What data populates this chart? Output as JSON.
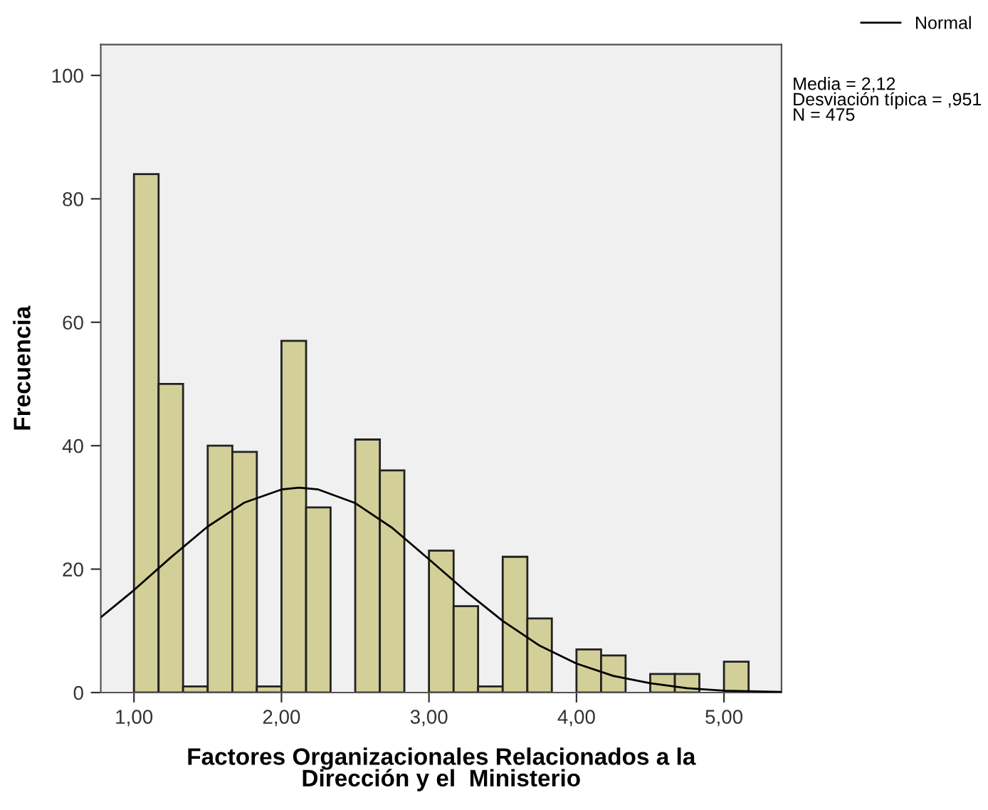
{
  "chart_data": {
    "type": "histogram",
    "xlabel": "Factores Organizacionales Relacionados a la\nDirección y el  Ministerio",
    "ylabel": "Frecuencia",
    "series": [
      {
        "color": "#d3cf98",
        "bins": [
          1,
          1.167,
          1.333,
          1.5,
          1.667,
          1.833,
          2,
          2.167,
          2.333,
          2.5,
          2.667,
          2.833,
          3,
          3.167,
          3.333,
          3.5,
          3.667,
          3.833,
          4,
          4.167,
          4.333,
          4.5,
          4.667,
          4.833,
          5,
          5.167
        ],
        "values": [
          84,
          50,
          1,
          40,
          39,
          1,
          57,
          30,
          0,
          41,
          36,
          0,
          23,
          14,
          1,
          22,
          12,
          0,
          7,
          6,
          0,
          3,
          3,
          0,
          5
        ]
      },
      {
        "type": "line",
        "name": "Normal",
        "color": "#000000",
        "x": [
          0.775,
          1.0,
          1.25,
          1.5,
          1.75,
          2.0,
          2.12,
          2.25,
          2.5,
          2.75,
          3.0,
          3.25,
          3.5,
          3.75,
          4.0,
          4.25,
          4.5,
          4.75,
          5.0,
          5.39
        ],
        "values": [
          12.2,
          16.6,
          21.9,
          26.9,
          30.8,
          32.9,
          33.2,
          32.9,
          30.7,
          26.7,
          21.6,
          16.4,
          11.6,
          7.6,
          4.7,
          2.7,
          1.5,
          0.7,
          0.3,
          0.1
        ]
      }
    ],
    "annotations": [
      "Media = 2,12\nDesviación típica = ,951\nN = 475"
    ],
    "xlim": [
      0.775,
      5.39
    ],
    "ylim": [
      0,
      105
    ],
    "xticks": [
      {
        "value": 1,
        "label": "1,00"
      },
      {
        "value": 2,
        "label": "2,00"
      },
      {
        "value": 3,
        "label": "3,00"
      },
      {
        "value": 4,
        "label": "4,00"
      },
      {
        "value": 5,
        "label": "5,00"
      }
    ],
    "yticks": [
      0,
      20,
      40,
      60,
      80,
      100
    ],
    "grid": false,
    "legend": "top right"
  }
}
